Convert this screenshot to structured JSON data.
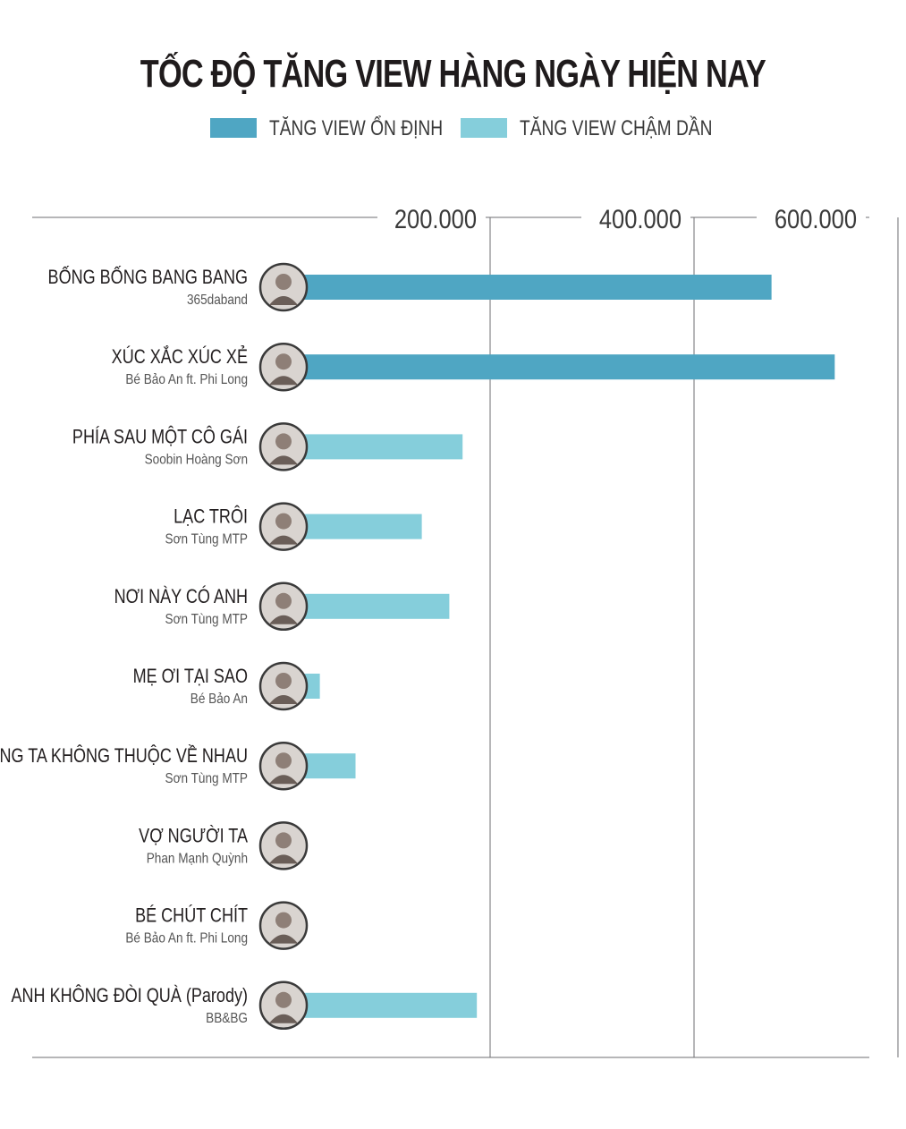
{
  "chart_data": {
    "type": "bar",
    "orientation": "horizontal",
    "title": "TỐC ĐỘ TĂNG VIEW HÀNG NGÀY HIỆN NAY",
    "xlim": [
      0,
      700000
    ],
    "ticks": [
      {
        "value": 200000,
        "label": "200.000"
      },
      {
        "value": 400000,
        "label": "400.000"
      },
      {
        "value": 600000,
        "label": "600.000"
      }
    ],
    "legend_placement": "top",
    "series": [
      {
        "name": "TĂNG VIEW ỔN ĐỊNH",
        "color": "#4fa6c3"
      },
      {
        "name": "TĂNG VIEW CHẬM DẦN",
        "color": "#85cedb"
      }
    ],
    "categories": [
      {
        "title": "BỐNG BỐNG BANG BANG",
        "artist": "365daband",
        "value": 476000,
        "series": 0
      },
      {
        "title": "XÚC XẮC XÚC XẺ",
        "artist": "Bé Bảo An ft. Phi Long",
        "value": 538000,
        "series": 0
      },
      {
        "title": "PHÍA SAU MỘT CÔ GÁI",
        "artist": "Soobin Hoàng Sơn",
        "value": 173000,
        "series": 1
      },
      {
        "title": "LẠC TRÔI",
        "artist": "Sơn Tùng MTP",
        "value": 133000,
        "series": 1
      },
      {
        "title": "NƠI NÀY CÓ ANH",
        "artist": "Sơn Tùng MTP",
        "value": 160000,
        "series": 1
      },
      {
        "title": "MẸ ƠI TẠI SAO",
        "artist": "Bé Bảo An",
        "value": 33000,
        "series": 1
      },
      {
        "title": "CHÚNG TA KHÔNG THUỘC VỀ NHAU",
        "artist": "Sơn Tùng MTP",
        "value": 68000,
        "series": 1
      },
      {
        "title": "VỢ NGƯỜI TA",
        "artist": "Phan Mạnh Quỳnh",
        "value": 17000,
        "series": 1
      },
      {
        "title": "BÉ CHÚT CHÍT",
        "artist": "Bé Bảo An ft. Phi Long",
        "value": 17000,
        "series": 1
      },
      {
        "title": "ANH KHÔNG ĐÒI QUÀ (Parody)",
        "artist": "BB&BG",
        "value": 187000,
        "series": 1
      }
    ],
    "grid": true
  },
  "colors": {
    "stable": "#4fa6c3",
    "slowing": "#85cedb",
    "axis": "#6d6e70"
  },
  "icons": [
    "artist-avatar-icon"
  ]
}
